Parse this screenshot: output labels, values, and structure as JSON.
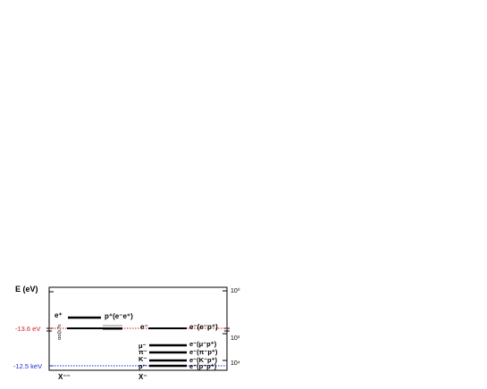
{
  "axis": {
    "title": "E (eV)",
    "left_ticks": {
      "rydberg": "-13.6 eV",
      "kev": "-12.5 keV"
    },
    "right_ticks": {
      "top": "10⁰",
      "mid": "10³",
      "low": "10⁴"
    },
    "left_side_label": "ααζε?ε",
    "bottom_labels": {
      "left": "X⁻⁻",
      "middle": "X⁻"
    }
  },
  "levels": {
    "left": {
      "upper_label": "e⁺",
      "upper_right": "p⁺(e⁻e⁺)",
      "lower_label": "",
      "gray_pair": ""
    },
    "middle": {
      "label": "e⁻",
      "right_label": "e⁻(e⁻p⁺)",
      "mu_label": "μ⁻",
      "pi_label": "π⁻",
      "k_label": "K⁻",
      "p_label": "p⁻",
      "mu_right": "e⁻(μ⁻p⁺)",
      "pi_right": "e⁻(π⁻p⁺)",
      "k_right": "e⁻(K⁻p⁺)",
      "p_right": "e⁻(p⁻p⁺)"
    }
  },
  "colors": {
    "red": "#d11a1a",
    "blue": "#1b2bd1",
    "black": "#000000",
    "gray": "#8a8a8a"
  }
}
